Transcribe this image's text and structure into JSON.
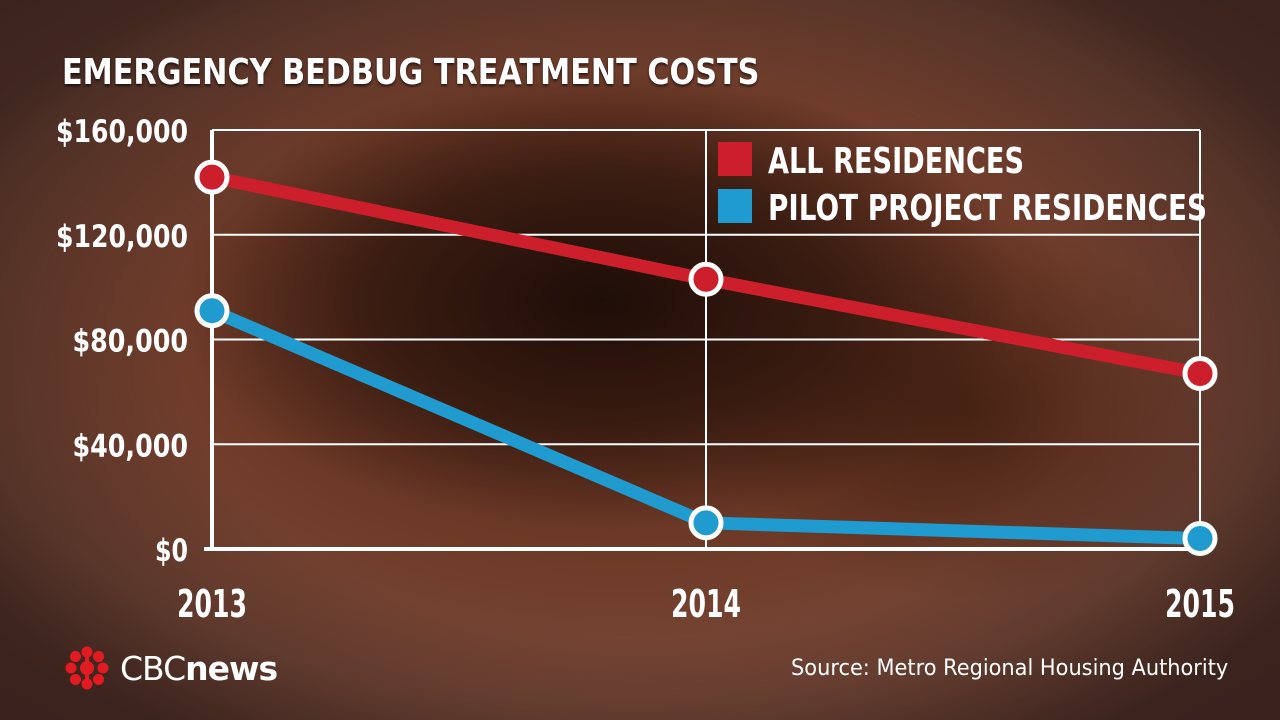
{
  "title": "EMERGENCY BEDBUG TREATMENT COSTS",
  "source": "Source:  Metro Regional Housing Authority",
  "logo": {
    "brand": "CBC",
    "product": "news",
    "icon": "cbc-gem-icon"
  },
  "colors": {
    "all_residences": "#cc1f2b",
    "pilot_residences": "#1f9bd0",
    "grid": "#ffffff"
  },
  "chart_data": {
    "type": "line",
    "title": "EMERGENCY BEDBUG TREATMENT COSTS",
    "x": [
      "2013",
      "2014",
      "2015"
    ],
    "ylim": [
      0,
      160000
    ],
    "yticks": [
      0,
      40000,
      80000,
      120000,
      160000
    ],
    "ytick_labels": [
      "$0",
      "$40,000",
      "$80,000",
      "$120,000",
      "$160,000"
    ],
    "grid": true,
    "legend_position": "top-right",
    "series": [
      {
        "name": "ALL RESIDENCES",
        "color": "#cc1f2b",
        "values": [
          142000,
          103000,
          67000
        ]
      },
      {
        "name": "PILOT PROJECT RESIDENCES",
        "color": "#1f9bd0",
        "values": [
          91000,
          10000,
          4000
        ]
      }
    ]
  }
}
